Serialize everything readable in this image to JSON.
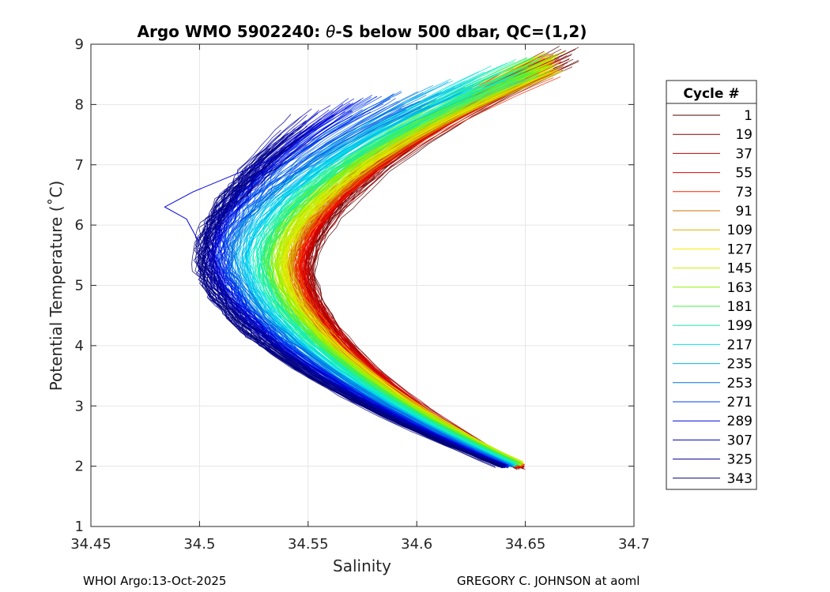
{
  "chart_data": {
    "type": "line",
    "title_prefix": "Argo WMO 5902240: ",
    "title_theta": "θ",
    "title_suffix": "-S below 500 dbar,  QC=(1,2)",
    "xlabel": "Salinity",
    "ylabel": "Potential Temperature (˚C)",
    "xlim": [
      34.45,
      34.7
    ],
    "ylim": [
      1,
      9
    ],
    "grid": true,
    "x_ticks": [
      34.45,
      34.5,
      34.55,
      34.6,
      34.65,
      34.7
    ],
    "x_tick_labels": [
      "34.45",
      "34.5",
      "34.55",
      "34.6",
      "34.65",
      "34.7"
    ],
    "y_ticks": [
      1,
      2,
      3,
      4,
      5,
      6,
      7,
      8,
      9
    ],
    "y_tick_labels": [
      "1",
      "2",
      "3",
      "4",
      "5",
      "6",
      "7",
      "8",
      "9"
    ],
    "legend": {
      "title": "Cycle #",
      "placement": "outside-right",
      "entries": [
        {
          "label": "1",
          "color": "#500000"
        },
        {
          "label": "19",
          "color": "#8b0000"
        },
        {
          "label": "37",
          "color": "#c00000"
        },
        {
          "label": "55",
          "color": "#e00000"
        },
        {
          "label": "73",
          "color": "#ff2000"
        },
        {
          "label": "91",
          "color": "#d07000"
        },
        {
          "label": "109",
          "color": "#d8b000"
        },
        {
          "label": "127",
          "color": "#f0f000"
        },
        {
          "label": "145",
          "color": "#c8f000"
        },
        {
          "label": "163",
          "color": "#90f000"
        },
        {
          "label": "181",
          "color": "#40f040"
        },
        {
          "label": "199",
          "color": "#20f0a0"
        },
        {
          "label": "217",
          "color": "#00e8e8"
        },
        {
          "label": "235",
          "color": "#00b8f0"
        },
        {
          "label": "253",
          "color": "#0070e0"
        },
        {
          "label": "271",
          "color": "#0040f0"
        },
        {
          "label": "289",
          "color": "#0000e0"
        },
        {
          "label": "307",
          "color": "#0000b0"
        },
        {
          "label": "325",
          "color": "#000090"
        },
        {
          "label": "343",
          "color": "#000070"
        }
      ]
    },
    "profile_envelope": [
      {
        "cycle": 1,
        "deep": [
          34.648,
          1.97
        ],
        "bend": [
          34.551,
          5.2
        ],
        "top": [
          34.672,
          8.82
        ]
      },
      {
        "cycle": 37,
        "deep": [
          34.648,
          1.98
        ],
        "bend": [
          34.548,
          5.3
        ],
        "top": [
          34.662,
          8.68
        ]
      },
      {
        "cycle": 91,
        "deep": [
          34.647,
          2.02
        ],
        "bend": [
          34.543,
          5.3
        ],
        "top": [
          34.66,
          8.6
        ]
      },
      {
        "cycle": 145,
        "deep": [
          34.648,
          2.05
        ],
        "bend": [
          34.536,
          5.4
        ],
        "top": [
          34.662,
          8.7
        ]
      },
      {
        "cycle": 199,
        "deep": [
          34.645,
          2.03
        ],
        "bend": [
          34.528,
          5.4
        ],
        "top": [
          34.65,
          8.6
        ]
      },
      {
        "cycle": 253,
        "deep": [
          34.642,
          2.0
        ],
        "bend": [
          34.513,
          5.5
        ],
        "top": [
          34.6,
          8.1
        ]
      },
      {
        "cycle": 307,
        "deep": [
          34.64,
          2.0
        ],
        "bend": [
          34.503,
          5.5
        ],
        "top": [
          34.55,
          7.8
        ]
      },
      {
        "cycle": 343,
        "deep": [
          34.638,
          2.0
        ],
        "bend": [
          34.5,
          5.4
        ],
        "top": [
          34.535,
          7.1
        ]
      }
    ],
    "annotations": {
      "outlier_profile": [
        [
          34.535,
          7.12
        ],
        [
          34.497,
          6.55
        ],
        [
          34.484,
          6.3
        ],
        [
          34.494,
          6.1
        ],
        [
          34.5,
          5.7
        ]
      ]
    }
  },
  "footer": {
    "left": "WHOI Argo:13-Oct-2025",
    "right": "GREGORY C. JOHNSON at aoml"
  }
}
